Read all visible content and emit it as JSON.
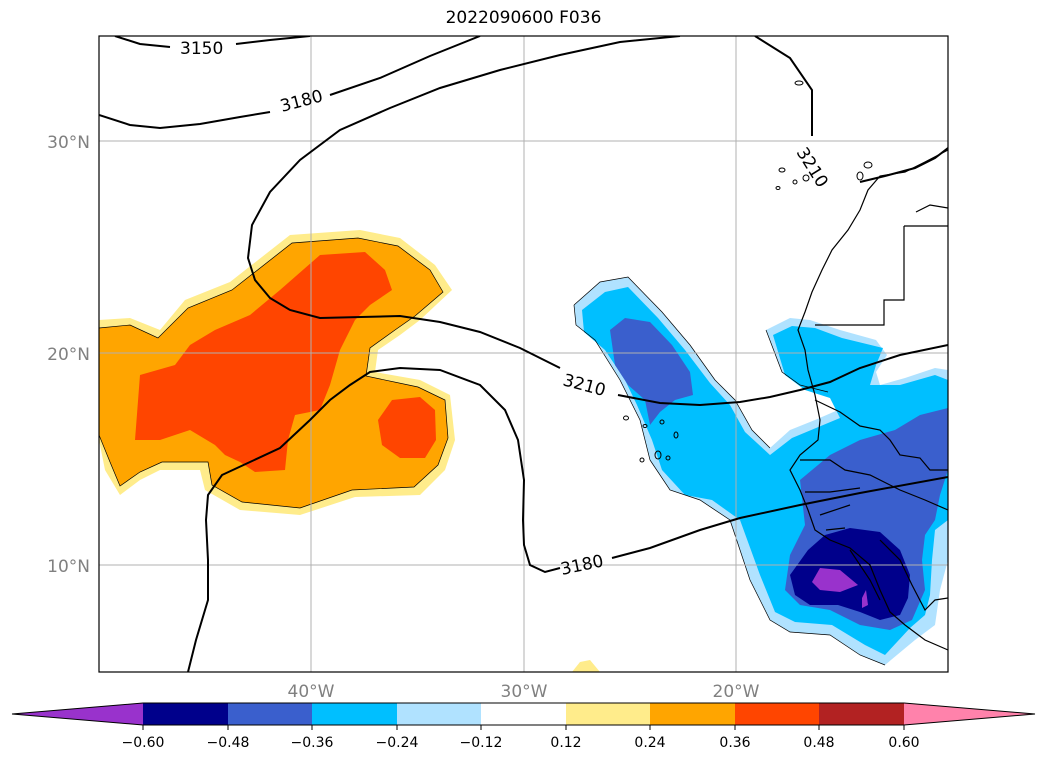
{
  "title": "2022090600 F036",
  "map": {
    "lat_labels": [
      "30°N",
      "20°N",
      "10°N"
    ],
    "lon_labels": [
      "40°W",
      "30°W",
      "20°W"
    ],
    "contour_labels": [
      "3150",
      "3180",
      "3210",
      "3210",
      "3180"
    ]
  },
  "colorbar": {
    "ticks": [
      "−0.60",
      "−0.48",
      "−0.36",
      "−0.24",
      "−0.12",
      "0.12",
      "0.24",
      "0.36",
      "0.48",
      "0.60"
    ],
    "colors": {
      "lt_neg060": "#9932cc",
      "neg060_neg048": "#00008b",
      "neg048_neg036": "#3a5fcd",
      "neg036_neg024": "#00bfff",
      "neg024_neg012": "#b0e2ff",
      "neg012_012": "#ffffff",
      "p012_024": "#ffec8b",
      "p024_036": "#ffa500",
      "p036_048": "#ff4500",
      "p048_060": "#b22222",
      "gt_060": "#ff82ab"
    }
  }
}
